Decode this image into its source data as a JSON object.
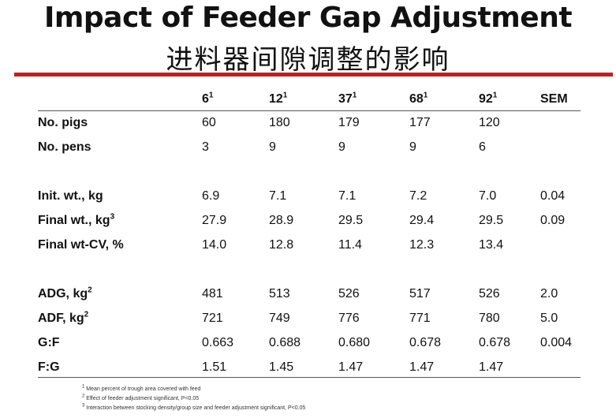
{
  "title": "Impact of Feeder Gap Adjustment",
  "subtitle": "进料器间隙调整的影响",
  "table": {
    "columns": [
      {
        "label": "6",
        "sup": "1"
      },
      {
        "label": "12",
        "sup": "1"
      },
      {
        "label": "37",
        "sup": "1"
      },
      {
        "label": "68",
        "sup": "1"
      },
      {
        "label": "92",
        "sup": "1"
      },
      {
        "label": "SEM",
        "sup": ""
      }
    ],
    "rows": [
      {
        "label": "No. pigs",
        "sup": "",
        "values": [
          "60",
          "180",
          "179",
          "177",
          "120",
          ""
        ]
      },
      {
        "label": "No. pens",
        "sup": "",
        "values": [
          "3",
          "9",
          "9",
          "9",
          "6",
          ""
        ]
      },
      {
        "label": "Init. wt., kg",
        "sup": "",
        "values": [
          "6.9",
          "7.1",
          "7.1",
          "7.2",
          "7.0",
          "0.04"
        ]
      },
      {
        "label": "Final wt., kg",
        "sup": "3",
        "values": [
          "27.9",
          "28.9",
          "29.5",
          "29.4",
          "29.5",
          "0.09"
        ]
      },
      {
        "label": "Final wt-CV, %",
        "sup": "",
        "values": [
          "14.0",
          "12.8",
          "11.4",
          "12.3",
          "13.4",
          ""
        ]
      },
      {
        "label": "ADG, kg",
        "sup": "2",
        "values": [
          "481",
          "513",
          "526",
          "517",
          "526",
          "2.0"
        ]
      },
      {
        "label": "ADF, kg",
        "sup": "2",
        "values": [
          "721",
          "749",
          "776",
          "771",
          "780",
          "5.0"
        ]
      },
      {
        "label": "G:F",
        "sup": "",
        "values": [
          "0.663",
          "0.688",
          "0.680",
          "0.678",
          "0.678",
          "0.004"
        ]
      },
      {
        "label": "F:G",
        "sup": "",
        "values": [
          "1.51",
          "1.45",
          "1.47",
          "1.47",
          "1.47",
          ""
        ]
      }
    ]
  },
  "footnotes": [
    {
      "sup": "1",
      "text": "Mean percent of trough area covered with feed"
    },
    {
      "sup": "2",
      "text": "Effect of feeder adjustment significant, P<0.05"
    },
    {
      "sup": "3",
      "text": "Interaction between stocking density/group size and feeder adjustment significant, P<0.05"
    }
  ]
}
